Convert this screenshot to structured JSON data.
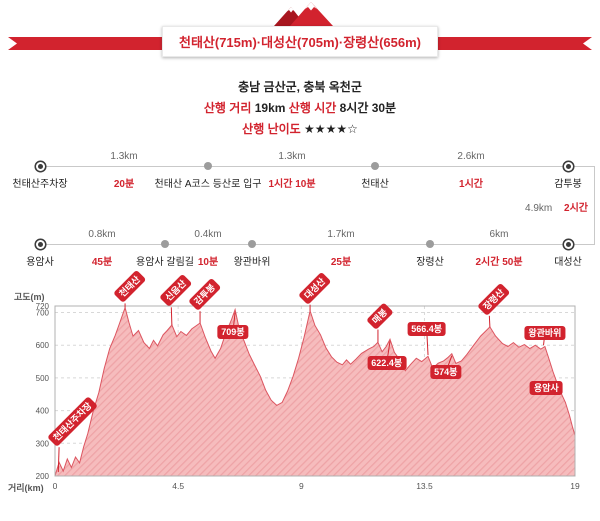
{
  "banner": {
    "title": "천태산(715m)·대성산(705m)·장령산(656m)"
  },
  "info": {
    "region": "충남 금산군, 충북 옥천군",
    "distance_label": "산행 거리",
    "distance_value": "19km",
    "time_label": "산행 시간",
    "time_value": "8시간 30분",
    "difficulty_label": "산행 난이도",
    "difficulty_value": "★★★★☆"
  },
  "route": {
    "row1": {
      "nodes": [
        {
          "name": "천태산주차장"
        },
        {
          "name": "천태산 A코스 등산로 입구"
        },
        {
          "name": "천태산"
        },
        {
          "name": "감투봉"
        }
      ],
      "segments": [
        {
          "distance": "1.3km",
          "time": "20분"
        },
        {
          "distance": "1.3km",
          "time": "1시간 10분"
        },
        {
          "distance": "2.6km",
          "time": "1시간"
        }
      ]
    },
    "connector": {
      "distance": "4.9km",
      "time": "2시간"
    },
    "row2": {
      "nodes": [
        {
          "name": "용암사"
        },
        {
          "name": "용암사 갈림길"
        },
        {
          "name": "왕관바위"
        },
        {
          "name": "장령산"
        },
        {
          "name": "대성산"
        }
      ],
      "segments": [
        {
          "distance": "0.8km",
          "time": "45분"
        },
        {
          "distance": "0.4km",
          "time": "10분"
        },
        {
          "distance": "1.7km",
          "time": "25분"
        },
        {
          "distance": "6km",
          "time": "2시간 50분"
        }
      ]
    }
  },
  "chart_data": {
    "type": "area",
    "ylabel": "고도(m)",
    "xlabel": "거리(km)",
    "xlim": [
      0,
      19
    ],
    "ylim": [
      200,
      720
    ],
    "yticks": [
      200,
      300,
      400,
      500,
      600,
      700,
      720
    ],
    "xticks": [
      0,
      4.5,
      9,
      13.5,
      19
    ],
    "fill_color": "#f6bcbd",
    "accent_color": "#d2232e",
    "profile": [
      [
        0,
        200
      ],
      [
        0.15,
        242
      ],
      [
        0.3,
        215
      ],
      [
        0.45,
        252
      ],
      [
        0.6,
        226
      ],
      [
        0.75,
        258
      ],
      [
        0.9,
        240
      ],
      [
        1.05,
        290
      ],
      [
        1.2,
        330
      ],
      [
        1.4,
        400
      ],
      [
        1.6,
        455
      ],
      [
        1.8,
        530
      ],
      [
        2.0,
        590
      ],
      [
        2.2,
        630
      ],
      [
        2.35,
        665
      ],
      [
        2.56,
        715
      ],
      [
        2.7,
        670
      ],
      [
        2.85,
        628
      ],
      [
        3.05,
        645
      ],
      [
        3.25,
        608
      ],
      [
        3.45,
        590
      ],
      [
        3.6,
        615
      ],
      [
        3.75,
        598
      ],
      [
        3.95,
        632
      ],
      [
        4.1,
        645
      ],
      [
        4.27,
        662
      ],
      [
        4.45,
        626
      ],
      [
        4.6,
        642
      ],
      [
        4.8,
        630
      ],
      [
        5.0,
        650
      ],
      [
        5.3,
        668
      ],
      [
        5.5,
        622
      ],
      [
        5.7,
        582
      ],
      [
        5.85,
        560
      ],
      [
        6.05,
        590
      ],
      [
        6.25,
        640
      ],
      [
        6.45,
        678
      ],
      [
        6.58,
        709
      ],
      [
        6.72,
        655
      ],
      [
        6.9,
        615
      ],
      [
        7.1,
        572
      ],
      [
        7.3,
        538
      ],
      [
        7.5,
        505
      ],
      [
        7.7,
        462
      ],
      [
        7.9,
        432
      ],
      [
        8.1,
        416
      ],
      [
        8.3,
        425
      ],
      [
        8.5,
        460
      ],
      [
        8.7,
        505
      ],
      [
        8.9,
        560
      ],
      [
        9.1,
        625
      ],
      [
        9.32,
        705
      ],
      [
        9.5,
        660
      ],
      [
        9.7,
        632
      ],
      [
        9.9,
        592
      ],
      [
        10.1,
        565
      ],
      [
        10.3,
        548
      ],
      [
        10.5,
        540
      ],
      [
        10.65,
        555
      ],
      [
        10.8,
        542
      ],
      [
        11.0,
        558
      ],
      [
        11.2,
        575
      ],
      [
        11.45,
        588
      ],
      [
        11.65,
        596
      ],
      [
        11.8,
        609
      ],
      [
        11.95,
        580
      ],
      [
        12.1,
        596
      ],
      [
        12.24,
        618
      ],
      [
        12.4,
        578
      ],
      [
        12.6,
        555
      ],
      [
        12.8,
        522
      ],
      [
        13.0,
        542
      ],
      [
        13.2,
        560
      ],
      [
        13.4,
        550
      ],
      [
        13.63,
        566
      ],
      [
        13.8,
        530
      ],
      [
        14.0,
        545
      ],
      [
        14.2,
        552
      ],
      [
        14.35,
        562
      ],
      [
        14.5,
        574
      ],
      [
        14.65,
        544
      ],
      [
        14.85,
        552
      ],
      [
        15.05,
        572
      ],
      [
        15.3,
        600
      ],
      [
        15.55,
        628
      ],
      [
        15.89,
        656
      ],
      [
        16.1,
        628
      ],
      [
        16.35,
        605
      ],
      [
        16.55,
        596
      ],
      [
        16.75,
        608
      ],
      [
        16.95,
        594
      ],
      [
        17.15,
        602
      ],
      [
        17.35,
        590
      ],
      [
        17.55,
        600
      ],
      [
        17.75,
        588
      ],
      [
        17.9,
        596
      ],
      [
        18.05,
        558
      ],
      [
        18.2,
        518
      ],
      [
        18.35,
        484
      ],
      [
        18.5,
        452
      ],
      [
        18.65,
        425
      ],
      [
        18.8,
        385
      ],
      [
        18.9,
        352
      ],
      [
        19,
        324
      ]
    ],
    "peaks": [
      {
        "label": "천태산주차장",
        "line": [
          0.12,
          212,
          0.15,
          288
        ],
        "rot": -45
      },
      {
        "label": "천태산",
        "line": [
          2.56,
          715,
          2.56,
          728
        ],
        "rot": -45
      },
      {
        "label": "신음산",
        "line": [
          4.27,
          662,
          4.25,
          716
        ],
        "rot": -45
      },
      {
        "label": "감투봉",
        "line": [
          5.3,
          668,
          5.3,
          704
        ],
        "rot": -45
      },
      {
        "label": "709봉",
        "line": [
          6.58,
          700,
          6.5,
          640
        ],
        "rot": 0
      },
      {
        "label": "대성산",
        "line": [
          9.32,
          705,
          9.32,
          724
        ],
        "rot": -45
      },
      {
        "label": "매봉",
        "line": [
          11.8,
          609,
          11.8,
          648
        ],
        "rot": -45
      },
      {
        "label": "622.4봉",
        "line": [
          12.24,
          612,
          12.12,
          545
        ],
        "rot": 0
      },
      {
        "label": "566.4봉",
        "line": [
          13.63,
          570,
          13.58,
          650
        ],
        "rot": 0
      },
      {
        "label": "574봉",
        "line": [
          14.5,
          568,
          14.28,
          518
        ],
        "rot": 0
      },
      {
        "label": "장령산",
        "line": [
          15.89,
          656,
          15.87,
          690
        ],
        "rot": -45
      },
      {
        "label": "왕관바위",
        "line": [
          17.85,
          600,
          17.9,
          638
        ],
        "rot": 0
      },
      {
        "label": "용암사",
        "line": [
          18.45,
          455,
          17.95,
          468
        ],
        "rot": 0
      }
    ]
  }
}
